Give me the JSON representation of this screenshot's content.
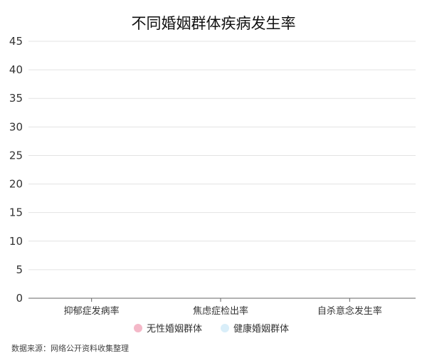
{
  "chart_data": {
    "type": "bar",
    "title": "不同婚姻群体疾病发生率",
    "categories": [
      "抑郁症发病率",
      "焦虑症检出率",
      "自杀意念发生率"
    ],
    "series": [
      {
        "name": "无性婚姻群体",
        "values": [
          null,
          null,
          null
        ],
        "color": "#f4b8c8"
      },
      {
        "name": "健康婚姻群体",
        "values": [
          null,
          null,
          null
        ],
        "color": "#d9eef9"
      }
    ],
    "xlabel": "",
    "ylabel": "",
    "ylim": [
      0,
      45
    ],
    "yticks": [
      "0",
      "5",
      "10",
      "15",
      "20",
      "25",
      "30",
      "35",
      "40",
      "45"
    ],
    "grid": true,
    "legend": "bottom"
  },
  "source": "数据来源：网络公开资料收集整理"
}
